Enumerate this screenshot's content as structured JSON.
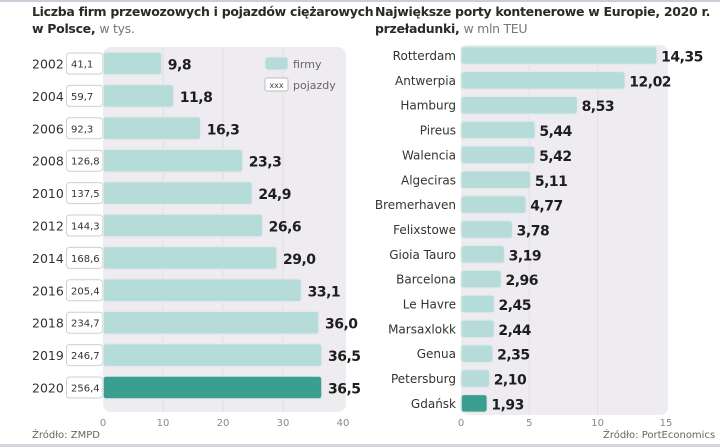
{
  "chart_data": [
    {
      "type": "bar",
      "orientation": "horizontal",
      "title": "Liczba firm przewozowych i pojazdów ciężarowych",
      "title_line2_bold": "w Polsce,",
      "subtitle": "w tys.",
      "categories": [
        "2002",
        "2004",
        "2006",
        "2008",
        "2010",
        "2012",
        "2014",
        "2016",
        "2018",
        "2019",
        "2020"
      ],
      "series": [
        {
          "name": "firmy",
          "values": [
            9.8,
            11.8,
            16.3,
            23.3,
            24.9,
            26.6,
            29.0,
            33.1,
            36.0,
            36.5,
            36.5
          ],
          "labels": [
            "9,8",
            "11,8",
            "16,3",
            "23,3",
            "24,9",
            "26,6",
            "29,0",
            "33,1",
            "36,0",
            "36,5",
            "36,5"
          ]
        },
        {
          "name": "pojazdy",
          "values": [
            41.1,
            59.7,
            92.3,
            126.8,
            137.5,
            144.3,
            168.6,
            205.4,
            234.7,
            246.7,
            256.4
          ],
          "labels": [
            "41,1",
            "59,7",
            "92,3",
            "126,8",
            "137,5",
            "144,3",
            "168,6",
            "205,4",
            "234,7",
            "246,7",
            "256,4"
          ]
        }
      ],
      "highlight_category": "2020",
      "xlim": [
        0,
        40
      ],
      "xticks": [
        "0",
        "10",
        "20",
        "30",
        "40"
      ],
      "grid": true,
      "legend": {
        "position": "top-right",
        "entries": [
          {
            "label": "firmy",
            "swatch": "bar"
          },
          {
            "label": "pojazdy",
            "swatch": "box",
            "swatch_text": "xxx"
          }
        ]
      },
      "source": "Źródło: ZMPD"
    },
    {
      "type": "bar",
      "orientation": "horizontal",
      "title": "Największe porty kontenerowe w Europie, 2020 r.",
      "title_line2_bold": "przeładunki,",
      "subtitle": "w mln TEU",
      "categories": [
        "Rotterdam",
        "Antwerpia",
        "Hamburg",
        "Pireus",
        "Walencia",
        "Algeciras",
        "Bremerhaven",
        "Felixstowe",
        "Gioia Tauro",
        "Barcelona",
        "Le Havre",
        "Marsaxlokk",
        "Genua",
        "Petersburg",
        "Gdańsk"
      ],
      "values": [
        14.35,
        12.02,
        8.53,
        5.44,
        5.42,
        5.11,
        4.77,
        3.78,
        3.19,
        2.96,
        2.45,
        2.44,
        2.35,
        2.1,
        1.93
      ],
      "labels": [
        "14,35",
        "12,02",
        "8,53",
        "5,44",
        "5,42",
        "5,11",
        "4,77",
        "3,78",
        "3,19",
        "2,96",
        "2,45",
        "2,44",
        "2,35",
        "2,10",
        "1,93"
      ],
      "highlight_category": "Gdańsk",
      "xlim": [
        0,
        15
      ],
      "xticks": [
        "0",
        "5",
        "10",
        "15"
      ],
      "grid": true,
      "source": "Źródło: PortEconomics"
    }
  ],
  "colors": {
    "bar": "#b5dcd8",
    "bar_border": "#e6e9ec",
    "highlight": "#3a9e90",
    "plot_bg": "#efecf1",
    "grid": "#e2dde5",
    "value_text": "#1e1e1e",
    "tick_text": "#8a8a8a"
  }
}
